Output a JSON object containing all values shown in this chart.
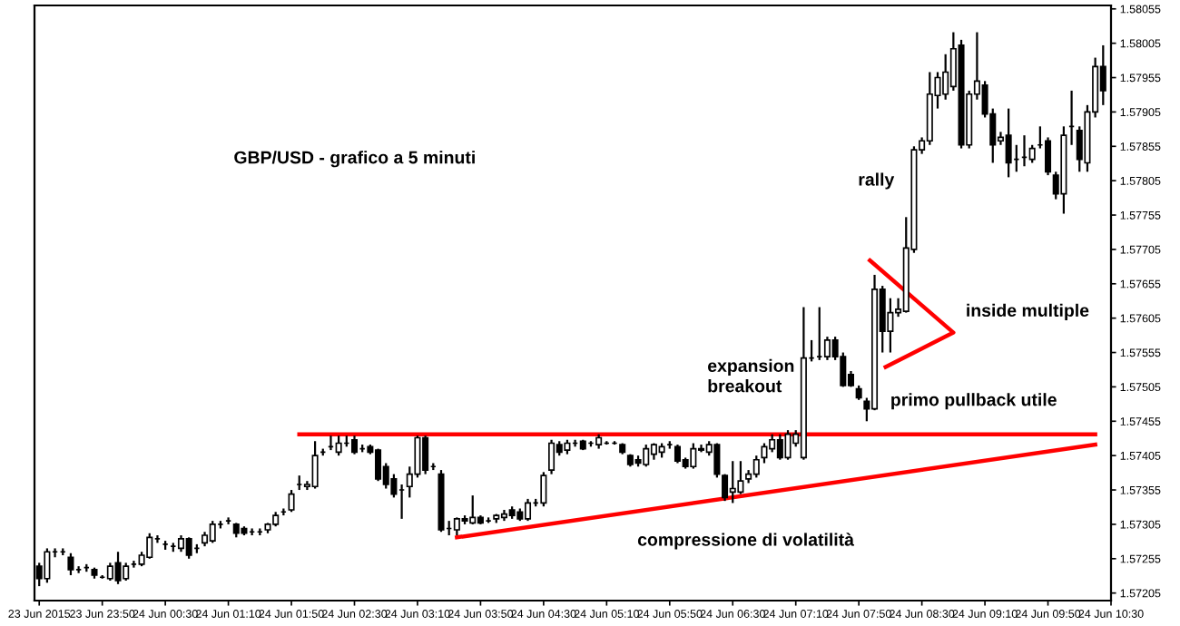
{
  "chart_data": {
    "type": "candlestick",
    "title": "GBP/USD - grafico a 5 minuti",
    "color": "#000000",
    "grid": false,
    "x": [
      "2015-06-23T23:10",
      "2015-06-23T23:15",
      "2015-06-23T23:20",
      "2015-06-23T23:25",
      "2015-06-23T23:30",
      "2015-06-23T23:35",
      "2015-06-23T23:40",
      "2015-06-23T23:45",
      "2015-06-23T23:50",
      "2015-06-23T23:55",
      "2015-06-24T00:00",
      "2015-06-24T00:05",
      "2015-06-24T00:10",
      "2015-06-24T00:15",
      "2015-06-24T00:20",
      "2015-06-24T00:25",
      "2015-06-24T00:30",
      "2015-06-24T00:35",
      "2015-06-24T00:40",
      "2015-06-24T00:45",
      "2015-06-24T00:50",
      "2015-06-24T00:55",
      "2015-06-24T01:00",
      "2015-06-24T01:05",
      "2015-06-24T01:10",
      "2015-06-24T01:15",
      "2015-06-24T01:20",
      "2015-06-24T01:25",
      "2015-06-24T01:30",
      "2015-06-24T01:35",
      "2015-06-24T01:40",
      "2015-06-24T01:45",
      "2015-06-24T01:50",
      "2015-06-24T01:55",
      "2015-06-24T02:00",
      "2015-06-24T02:05",
      "2015-06-24T02:10",
      "2015-06-24T02:15",
      "2015-06-24T02:20",
      "2015-06-24T02:25",
      "2015-06-24T02:30",
      "2015-06-24T02:35",
      "2015-06-24T02:40",
      "2015-06-24T02:45",
      "2015-06-24T02:50",
      "2015-06-24T02:55",
      "2015-06-24T03:00",
      "2015-06-24T03:05",
      "2015-06-24T03:10",
      "2015-06-24T03:15",
      "2015-06-24T03:20",
      "2015-06-24T03:25",
      "2015-06-24T03:30",
      "2015-06-24T03:35",
      "2015-06-24T03:40",
      "2015-06-24T03:45",
      "2015-06-24T03:50",
      "2015-06-24T03:55",
      "2015-06-24T04:00",
      "2015-06-24T04:05",
      "2015-06-24T04:10",
      "2015-06-24T04:15",
      "2015-06-24T04:20",
      "2015-06-24T04:25",
      "2015-06-24T04:30",
      "2015-06-24T04:35",
      "2015-06-24T04:40",
      "2015-06-24T04:45",
      "2015-06-24T04:50",
      "2015-06-24T04:55",
      "2015-06-24T05:00",
      "2015-06-24T05:05",
      "2015-06-24T05:10",
      "2015-06-24T05:15",
      "2015-06-24T05:20",
      "2015-06-24T05:25",
      "2015-06-24T05:30",
      "2015-06-24T05:35",
      "2015-06-24T05:40",
      "2015-06-24T05:45",
      "2015-06-24T05:50",
      "2015-06-24T05:55",
      "2015-06-24T06:00",
      "2015-06-24T06:05",
      "2015-06-24T06:10",
      "2015-06-24T06:15",
      "2015-06-24T06:20",
      "2015-06-24T06:25",
      "2015-06-24T06:30",
      "2015-06-24T06:35",
      "2015-06-24T06:40",
      "2015-06-24T06:45",
      "2015-06-24T06:50",
      "2015-06-24T06:55",
      "2015-06-24T07:00",
      "2015-06-24T07:05",
      "2015-06-24T07:10",
      "2015-06-24T07:15",
      "2015-06-24T07:20",
      "2015-06-24T07:25",
      "2015-06-24T07:30",
      "2015-06-24T07:35",
      "2015-06-24T07:40",
      "2015-06-24T07:45",
      "2015-06-24T07:50",
      "2015-06-24T07:55",
      "2015-06-24T08:00",
      "2015-06-24T08:05",
      "2015-06-24T08:10",
      "2015-06-24T08:15",
      "2015-06-24T08:20",
      "2015-06-24T08:25",
      "2015-06-24T08:30",
      "2015-06-24T08:35",
      "2015-06-24T08:40",
      "2015-06-24T08:45",
      "2015-06-24T08:50",
      "2015-06-24T08:55",
      "2015-06-24T09:00",
      "2015-06-24T09:05",
      "2015-06-24T09:10",
      "2015-06-24T09:15",
      "2015-06-24T09:20",
      "2015-06-24T09:25",
      "2015-06-24T09:30",
      "2015-06-24T09:35",
      "2015-06-24T09:40",
      "2015-06-24T09:45",
      "2015-06-24T09:50",
      "2015-06-24T09:55",
      "2015-06-24T10:00",
      "2015-06-24T10:05",
      "2015-06-24T10:10",
      "2015-06-24T10:15",
      "2015-06-24T10:20",
      "2015-06-24T10:25"
    ],
    "ohlc": [
      [
        1.57244,
        1.57249,
        1.57215,
        1.57226
      ],
      [
        1.57226,
        1.5727,
        1.5722,
        1.57265
      ],
      [
        1.57265,
        1.5727,
        1.57257,
        1.57265
      ],
      [
        1.57265,
        1.5727,
        1.5726,
        1.57265
      ],
      [
        1.57257,
        1.57263,
        1.57231,
        1.57239
      ],
      [
        1.57239,
        1.57244,
        1.57234,
        1.57239
      ],
      [
        1.57242,
        1.57247,
        1.57236,
        1.57242
      ],
      [
        1.57239,
        1.57242,
        1.57226,
        1.57231
      ],
      [
        1.57228,
        1.57231,
        1.57226,
        1.57228
      ],
      [
        1.57226,
        1.57249,
        1.57223,
        1.57244
      ],
      [
        1.57249,
        1.57265,
        1.57218,
        1.57223
      ],
      [
        1.57226,
        1.57249,
        1.57223,
        1.57244
      ],
      [
        1.57247,
        1.57252,
        1.57242,
        1.57247
      ],
      [
        1.57247,
        1.57265,
        1.57244,
        1.5726
      ],
      [
        1.57257,
        1.57292,
        1.57255,
        1.57286
      ],
      [
        1.57284,
        1.57289,
        1.57278,
        1.57284
      ],
      [
        1.57276,
        1.57281,
        1.57268,
        1.57276
      ],
      [
        1.57273,
        1.57278,
        1.57265,
        1.57273
      ],
      [
        1.5727,
        1.57289,
        1.57265,
        1.57284
      ],
      [
        1.57284,
        1.57286,
        1.57255,
        1.5726
      ],
      [
        1.5727,
        1.57276,
        1.57263,
        1.5727
      ],
      [
        1.57278,
        1.57294,
        1.57273,
        1.57289
      ],
      [
        1.57281,
        1.5731,
        1.57278,
        1.57305
      ],
      [
        1.57305,
        1.5731,
        1.57299,
        1.57305
      ],
      [
        1.5731,
        1.57315,
        1.57305,
        1.5731
      ],
      [
        1.57305,
        1.57307,
        1.57286,
        1.57292
      ],
      [
        1.57299,
        1.57302,
        1.57289,
        1.57292
      ],
      [
        1.57294,
        1.57299,
        1.57289,
        1.57294
      ],
      [
        1.57294,
        1.57299,
        1.57289,
        1.57294
      ],
      [
        1.57297,
        1.57307,
        1.57292,
        1.57305
      ],
      [
        1.57305,
        1.57323,
        1.57302,
        1.57318
      ],
      [
        1.57323,
        1.57328,
        1.57318,
        1.57323
      ],
      [
        1.57326,
        1.57355,
        1.57323,
        1.57349
      ],
      [
        1.57363,
        1.57376,
        1.57355,
        1.57363
      ],
      [
        1.5736,
        1.57368,
        1.57355,
        1.57363
      ],
      [
        1.5736,
        1.57426,
        1.57357,
        1.57405
      ],
      [
        1.5741,
        1.57415,
        1.57405,
        1.5741
      ],
      [
        1.57418,
        1.57434,
        1.57413,
        1.57418
      ],
      [
        1.5741,
        1.57434,
        1.57405,
        1.57423
      ],
      [
        1.57423,
        1.57434,
        1.57418,
        1.57423
      ],
      [
        1.57428,
        1.57434,
        1.57407,
        1.5741
      ],
      [
        1.57415,
        1.57421,
        1.5741,
        1.57415
      ],
      [
        1.57418,
        1.57421,
        1.57407,
        1.5741
      ],
      [
        1.57413,
        1.57415,
        1.57368,
        1.57371
      ],
      [
        1.57389,
        1.57394,
        1.57357,
        1.57363
      ],
      [
        1.57371,
        1.57378,
        1.57344,
        1.57349
      ],
      [
        1.57355,
        1.57363,
        1.57313,
        1.57355
      ],
      [
        1.5736,
        1.57389,
        1.57344,
        1.57378
      ],
      [
        1.57378,
        1.57434,
        1.57373,
        1.57431
      ],
      [
        1.57431,
        1.57434,
        1.57378,
        1.57384
      ],
      [
        1.57389,
        1.57394,
        1.57384,
        1.57389
      ],
      [
        1.57378,
        1.57384,
        1.57294,
        1.57297
      ],
      [
        1.57299,
        1.5731,
        1.57289,
        1.57299
      ],
      [
        1.57297,
        1.57315,
        1.57289,
        1.57313
      ],
      [
        1.57313,
        1.57318,
        1.57305,
        1.5731
      ],
      [
        1.57307,
        1.57347,
        1.57305,
        1.57315
      ],
      [
        1.57315,
        1.57318,
        1.57305,
        1.57307
      ],
      [
        1.5731,
        1.57315,
        1.57307,
        1.5731
      ],
      [
        1.57313,
        1.5732,
        1.57307,
        1.57318
      ],
      [
        1.57315,
        1.57326,
        1.5731,
        1.5732
      ],
      [
        1.57326,
        1.57331,
        1.57313,
        1.57318
      ],
      [
        1.57323,
        1.57328,
        1.5731,
        1.57313
      ],
      [
        1.57313,
        1.57342,
        1.5731,
        1.57336
      ],
      [
        1.57336,
        1.57342,
        1.57331,
        1.57336
      ],
      [
        1.57336,
        1.57381,
        1.57331,
        1.57376
      ],
      [
        1.57384,
        1.57428,
        1.57378,
        1.57423
      ],
      [
        1.57421,
        1.57426,
        1.57405,
        1.5741
      ],
      [
        1.57413,
        1.57428,
        1.57407,
        1.57423
      ],
      [
        1.57423,
        1.57428,
        1.57418,
        1.57423
      ],
      [
        1.57426,
        1.57428,
        1.57413,
        1.57415
      ],
      [
        1.57423,
        1.57426,
        1.57418,
        1.57423
      ],
      [
        1.57421,
        1.57436,
        1.57415,
        1.57431
      ],
      [
        1.57423,
        1.57426,
        1.57421,
        1.57423
      ],
      [
        1.57423,
        1.57426,
        1.57421,
        1.57423
      ],
      [
        1.57421,
        1.57423,
        1.57407,
        1.5741
      ],
      [
        1.57405,
        1.57407,
        1.57389,
        1.57392
      ],
      [
        1.57399,
        1.57405,
        1.57389,
        1.57394
      ],
      [
        1.57392,
        1.57421,
        1.57389,
        1.57415
      ],
      [
        1.57407,
        1.57423,
        1.57399,
        1.57421
      ],
      [
        1.5741,
        1.57423,
        1.57402,
        1.57418
      ],
      [
        1.57421,
        1.57426,
        1.57415,
        1.57421
      ],
      [
        1.57418,
        1.57421,
        1.57394,
        1.57397
      ],
      [
        1.57399,
        1.57402,
        1.57386,
        1.57389
      ],
      [
        1.57389,
        1.57423,
        1.57386,
        1.57415
      ],
      [
        1.57413,
        1.57421,
        1.5741,
        1.57415
      ],
      [
        1.5741,
        1.57426,
        1.57405,
        1.57421
      ],
      [
        1.57421,
        1.57423,
        1.57373,
        1.57378
      ],
      [
        1.57376,
        1.57378,
        1.57339,
        1.57344
      ],
      [
        1.57352,
        1.57397,
        1.57336,
        1.57357
      ],
      [
        1.57352,
        1.57397,
        1.57349,
        1.57368
      ],
      [
        1.57371,
        1.57384,
        1.57365,
        1.57378
      ],
      [
        1.57378,
        1.57405,
        1.57373,
        1.57399
      ],
      [
        1.57402,
        1.57423,
        1.57394,
        1.57418
      ],
      [
        1.57415,
        1.57436,
        1.5741,
        1.57428
      ],
      [
        1.57428,
        1.57436,
        1.57399,
        1.57402
      ],
      [
        1.57402,
        1.57442,
        1.57399,
        1.57436
      ],
      [
        1.57423,
        1.57442,
        1.57418,
        1.57436
      ],
      [
        1.57402,
        1.57621,
        1.57399,
        1.57547
      ],
      [
        1.57547,
        1.57573,
        1.57542,
        1.57547
      ],
      [
        1.57549,
        1.57621,
        1.57544,
        1.57549
      ],
      [
        1.57549,
        1.57578,
        1.57544,
        1.57573
      ],
      [
        1.57573,
        1.57578,
        1.57544,
        1.57549
      ],
      [
        1.57549,
        1.57555,
        1.57505,
        1.57507
      ],
      [
        1.57523,
        1.57528,
        1.57505,
        1.57507
      ],
      [
        1.57502,
        1.57507,
        1.57486,
        1.57489
      ],
      [
        1.57484,
        1.57489,
        1.57455,
        1.57473
      ],
      [
        1.57473,
        1.57668,
        1.57471,
        1.57647
      ],
      [
        1.57647,
        1.57652,
        1.57555,
        1.57586
      ],
      [
        1.57586,
        1.57634,
        1.57555,
        1.57613
      ],
      [
        1.57613,
        1.57634,
        1.57607,
        1.57618
      ],
      [
        1.57615,
        1.57752,
        1.57613,
        1.57707
      ],
      [
        1.57705,
        1.57855,
        1.577,
        1.5785
      ],
      [
        1.5785,
        1.57868,
        1.57844,
        1.57863
      ],
      [
        1.57863,
        1.57963,
        1.57857,
        1.57931
      ],
      [
        1.57929,
        1.57963,
        1.5791,
        1.57955
      ],
      [
        1.57931,
        1.57989,
        1.57923,
        1.57963
      ],
      [
        1.57942,
        1.58021,
        1.57936,
        1.57997
      ],
      [
        1.58002,
        1.5801,
        1.57852,
        1.57857
      ],
      [
        1.57857,
        1.57936,
        1.57852,
        1.57931
      ],
      [
        1.57931,
        1.58021,
        1.57923,
        1.5795
      ],
      [
        1.57944,
        1.5795,
        1.57897,
        1.57902
      ],
      [
        1.57902,
        1.5791,
        1.57831,
        1.57857
      ],
      [
        1.57863,
        1.57876,
        1.57857,
        1.57868
      ],
      [
        1.57871,
        1.5791,
        1.5781,
        1.57831
      ],
      [
        1.57836,
        1.57857,
        1.57818,
        1.57836
      ],
      [
        1.57839,
        1.57871,
        1.57826,
        1.57839
      ],
      [
        1.57836,
        1.57857,
        1.57831,
        1.57852
      ],
      [
        1.57857,
        1.57884,
        1.57852,
        1.57857
      ],
      [
        1.57863,
        1.57868,
        1.57813,
        1.57818
      ],
      [
        1.57813,
        1.57818,
        1.57778,
        1.57786
      ],
      [
        1.57786,
        1.57884,
        1.57757,
        1.57871
      ],
      [
        1.57884,
        1.57936,
        1.57857,
        1.57884
      ],
      [
        1.57878,
        1.57884,
        1.57818,
        1.57836
      ],
      [
        1.57831,
        1.57915,
        1.57818,
        1.57905
      ],
      [
        1.57905,
        1.57984,
        1.57897,
        1.57971
      ],
      [
        1.57971,
        1.58002,
        1.57915,
        1.57936
      ]
    ],
    "series": [
      {
        "type": "line",
        "color": "#ff0000",
        "x": [
          "2015-06-24T01:55",
          "2015-06-24T10:20"
        ],
        "values": [
          1.57436,
          1.57436
        ]
      },
      {
        "type": "line",
        "color": "#ff0000",
        "x": [
          "2015-06-24T03:35",
          "2015-06-24T10:20"
        ],
        "values": [
          1.57286,
          1.57421
        ]
      },
      {
        "type": "line",
        "color": "#ff0000",
        "x": [
          "2015-06-24T07:57",
          "2015-06-24T08:50",
          "2015-06-24T08:07"
        ],
        "values": [
          1.57689,
          1.57584,
          1.57534
        ]
      }
    ],
    "annotations": [
      "rally",
      "inside multiple",
      "expansion\nbreakout",
      "primo pullback utile",
      "compressione di volatilità"
    ],
    "xlim": [
      "2015-06-23T23:07",
      "2015-06-24T10:30"
    ],
    "xticks": [
      {
        "value": "2015-06-23T23:10",
        "label": "23 Jun 2015"
      },
      {
        "value": "2015-06-23T23:50",
        "label": "23 Jun 23:50"
      },
      {
        "value": "2015-06-24T00:30",
        "label": "24 Jun 00:30"
      },
      {
        "value": "2015-06-24T01:10",
        "label": "24 Jun 01:10"
      },
      {
        "value": "2015-06-24T01:50",
        "label": "24 Jun 01:50"
      },
      {
        "value": "2015-06-24T02:30",
        "label": "24 Jun 02:30"
      },
      {
        "value": "2015-06-24T03:10",
        "label": "24 Jun 03:10"
      },
      {
        "value": "2015-06-24T03:50",
        "label": "24 Jun 03:50"
      },
      {
        "value": "2015-06-24T04:30",
        "label": "24 Jun 04:30"
      },
      {
        "value": "2015-06-24T05:10",
        "label": "24 Jun 05:10"
      },
      {
        "value": "2015-06-24T05:50",
        "label": "24 Jun 05:50"
      },
      {
        "value": "2015-06-24T06:30",
        "label": "24 Jun 06:30"
      },
      {
        "value": "2015-06-24T07:10",
        "label": "24 Jun 07:10"
      },
      {
        "value": "2015-06-24T07:50",
        "label": "24 Jun 07:50"
      },
      {
        "value": "2015-06-24T08:30",
        "label": "24 Jun 08:30"
      },
      {
        "value": "2015-06-24T09:10",
        "label": "24 Jun 09:10"
      },
      {
        "value": "2015-06-24T09:50",
        "label": "24 Jun 09:50"
      },
      {
        "value": "2015-06-24T10:30",
        "label": "24 Jun 10:30"
      }
    ],
    "ylim": [
      1.57194,
      1.5806
    ],
    "yticks": [
      1.57205,
      1.57255,
      1.57305,
      1.57355,
      1.57405,
      1.57455,
      1.57505,
      1.57555,
      1.57605,
      1.57655,
      1.57705,
      1.57755,
      1.57805,
      1.57855,
      1.57905,
      1.57955,
      1.58005,
      1.58055
    ]
  }
}
